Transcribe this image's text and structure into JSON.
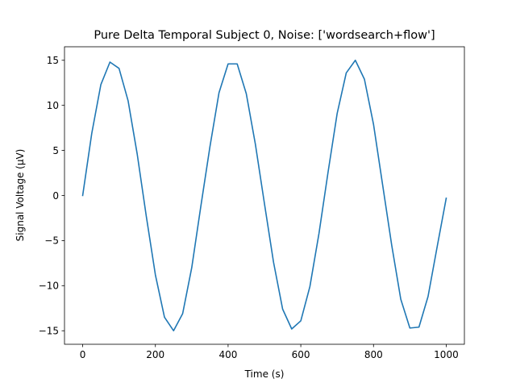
{
  "chart_data": {
    "type": "line",
    "title": "Pure Delta Temporal Subject 0, Noise: ['wordsearch+flow']",
    "xlabel": "Time (s)",
    "ylabel": "Signal Voltage (μV)",
    "xlim": [
      -50,
      1050
    ],
    "ylim": [
      -16.5,
      16.5
    ],
    "xticks": [
      0,
      200,
      400,
      600,
      800,
      1000
    ],
    "xtick_labels": [
      "0",
      "200",
      "400",
      "600",
      "800",
      "1000"
    ],
    "yticks": [
      -15,
      -10,
      -5,
      0,
      5,
      10,
      15
    ],
    "ytick_labels": [
      "−15",
      "−10",
      "−5",
      "0",
      "5",
      "10",
      "15"
    ],
    "grid": false,
    "series": [
      {
        "color": "#1f77b4",
        "x": [
          0,
          25,
          50,
          75,
          100,
          125,
          150,
          175,
          200,
          225,
          250,
          275,
          300,
          325,
          350,
          375,
          400,
          425,
          450,
          475,
          500,
          525,
          550,
          575,
          600,
          625,
          650,
          675,
          700,
          725,
          750,
          775,
          800,
          825,
          850,
          875,
          900,
          925,
          950,
          975,
          1000
        ],
        "values": [
          0,
          6.9,
          12.3,
          14.8,
          14.1,
          10.5,
          4.6,
          -2.3,
          -8.8,
          -13.5,
          -15.0,
          -13.1,
          -8.0,
          -1.2,
          5.4,
          11.4,
          14.6,
          14.6,
          11.3,
          5.7,
          -0.9,
          -7.4,
          -12.6,
          -14.8,
          -13.9,
          -10.1,
          -4.2,
          2.6,
          9.1,
          13.6,
          15.0,
          12.9,
          7.9,
          1.2,
          -5.5,
          -11.5,
          -14.7,
          -14.6,
          -11.2,
          -5.7,
          -0.3
        ]
      }
    ]
  }
}
